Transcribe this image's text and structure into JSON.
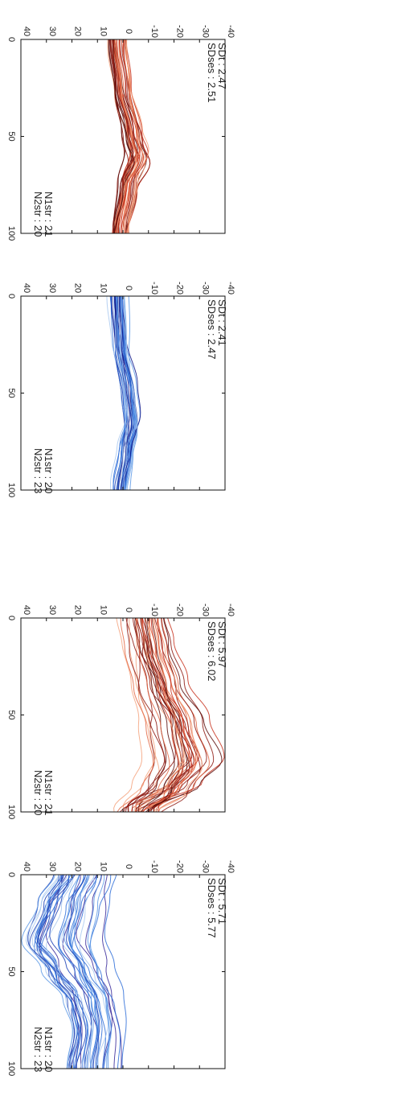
{
  "figure": {
    "layout": "2x2 panels, rotated 90 degrees clockwise",
    "trace_count_approx": 40
  },
  "chart_data": [
    {
      "type": "line",
      "panel": "top-left",
      "x_ticks": [
        "0",
        "50",
        "100"
      ],
      "y_ticks": [
        "-40",
        "-30",
        "-20",
        "-10",
        "0",
        "10",
        "20",
        "30",
        "40"
      ],
      "xlim": [
        0,
        100
      ],
      "ylim": [
        -40,
        40
      ],
      "grid": false,
      "palette": "reds",
      "colors": [
        "#f4a37e",
        "#e36845",
        "#c8321f",
        "#8e1a12",
        "#5a0d0a"
      ],
      "annotations": {
        "sd": "SDt    : 2.47",
        "sdses": "SDses : 2.51",
        "n1": "N1str : 21",
        "n2": "N2str : 20"
      },
      "mean_curve": {
        "x": [
          0,
          25,
          50,
          60,
          75,
          100
        ],
        "y": [
          2,
          0,
          -4,
          -6,
          -2,
          1
        ]
      },
      "spread_sd": 2.47
    },
    {
      "type": "line",
      "panel": "top-right",
      "x_ticks": [
        "0",
        "50",
        "100"
      ],
      "y_ticks": [
        "-40",
        "-30",
        "-20",
        "-10",
        "0",
        "10",
        "20",
        "30",
        "40"
      ],
      "xlim": [
        0,
        100
      ],
      "ylim": [
        -40,
        40
      ],
      "grid": false,
      "palette": "blues",
      "colors": [
        "#a9c9f0",
        "#5e9ae6",
        "#2f6ed8",
        "#1a3fb5",
        "#11188a"
      ],
      "annotations": {
        "sd": "SDt    : 2.41",
        "sdses": "SDses : 2.47",
        "n1": "N1str : 20",
        "n2": "N2str : 23"
      },
      "mean_curve": {
        "x": [
          0,
          25,
          50,
          65,
          80,
          100
        ],
        "y": [
          2,
          1,
          -2,
          -3,
          -1,
          1
        ]
      },
      "spread_sd": 2.41
    },
    {
      "type": "line",
      "panel": "bottom-left",
      "x_ticks": [
        "0",
        "50",
        "100"
      ],
      "y_ticks": [
        "-40",
        "-30",
        "-20",
        "-10",
        "0",
        "10",
        "20",
        "30",
        "40"
      ],
      "xlim": [
        0,
        100
      ],
      "ylim": [
        -40,
        40
      ],
      "grid": false,
      "palette": "reds",
      "colors": [
        "#f4a37e",
        "#e36845",
        "#c8321f",
        "#8e1a12",
        "#5a0d0a"
      ],
      "annotations": {
        "sd": "SDt    : 5.97",
        "sdses": "SDses : 6.02",
        "n1": "N1str : 21",
        "n2": "N2str : 20"
      },
      "mean_curve": {
        "x": [
          0,
          15,
          35,
          55,
          75,
          88,
          100
        ],
        "y": [
          -8,
          -10,
          -14,
          -20,
          -24,
          -18,
          -6
        ]
      },
      "spread_sd": 5.97
    },
    {
      "type": "line",
      "panel": "bottom-right",
      "x_ticks": [
        "0",
        "50",
        "100"
      ],
      "y_ticks": [
        "-40",
        "-30",
        "-20",
        "-10",
        "0",
        "10",
        "20",
        "30",
        "40"
      ],
      "xlim": [
        0,
        100
      ],
      "ylim": [
        -40,
        40
      ],
      "grid": false,
      "palette": "blues",
      "colors": [
        "#a9c9f0",
        "#5e9ae6",
        "#2f6ed8",
        "#1a3fb5",
        "#3a2a9a"
      ],
      "annotations": {
        "sd": "SDt    : 5.71",
        "sdses": "SDses : 5.77",
        "n1": "N1str : 20",
        "n2": "N2str : 23"
      },
      "mean_curve": {
        "x": [
          0,
          15,
          35,
          50,
          65,
          80,
          100
        ],
        "y": [
          15,
          20,
          24,
          18,
          12,
          10,
          12
        ]
      },
      "spread_sd": 5.71
    }
  ]
}
